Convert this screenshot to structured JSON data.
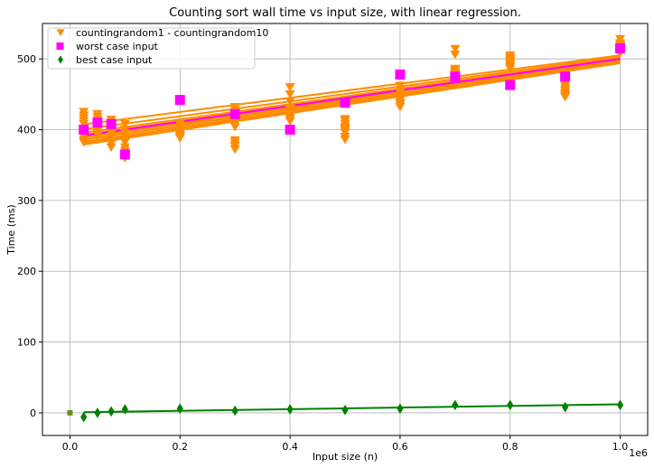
{
  "chart_data": {
    "type": "scatter",
    "title": "Counting sort wall time vs input size, with linear regression.",
    "xlabel": "Input size (n)",
    "ylabel": "Time (ms)",
    "x_offset_label": "1e6",
    "xlim": [
      -0.05,
      1.05
    ],
    "ylim": [
      -32,
      550
    ],
    "x_ticks": [
      0.0,
      0.2,
      0.4,
      0.6,
      0.8,
      1.0
    ],
    "x_tick_labels": [
      "0.0",
      "0.2",
      "0.4",
      "0.6",
      "0.8",
      "1.0"
    ],
    "y_ticks": [
      0,
      100,
      200,
      300,
      400,
      500
    ],
    "y_tick_labels": [
      "0",
      "100",
      "200",
      "300",
      "400",
      "500"
    ],
    "grid": true,
    "legend_position": "top-left",
    "legend": [
      {
        "label": "countingrandom1 - countingrandom10",
        "color": "#ff8c00",
        "marker": "triangle-down"
      },
      {
        "label": "worst case input",
        "color": "#ff00ff",
        "marker": "square"
      },
      {
        "label": "best case input",
        "color": "#008000",
        "marker": "diamond"
      }
    ],
    "random_series": {
      "color": "#ff8c00",
      "x": [
        0.025,
        0.05,
        0.075,
        0.1,
        0.2,
        0.3,
        0.4,
        0.5,
        0.6,
        0.7,
        0.8,
        0.9,
        1.0
      ],
      "y_runs": [
        [
          425,
          422,
          414,
          408,
          443,
          432,
          460,
          415,
          462,
          514,
          505,
          478,
          528
        ],
        [
          420,
          418,
          410,
          400,
          408,
          428,
          450,
          402,
          455,
          506,
          498,
          470,
          520
        ],
        [
          416,
          414,
          406,
          395,
          402,
          422,
          440,
          396,
          448,
          486,
          492,
          466,
          516
        ],
        [
          412,
          410,
          402,
          390,
          398,
          408,
          430,
          390,
          442,
          482,
          488,
          462,
          514
        ],
        [
          400,
          404,
          398,
          385,
          395,
          404,
          420,
          386,
          438,
          480,
          486,
          458,
          512
        ],
        [
          395,
          400,
          394,
          382,
          392,
          385,
          415,
          398,
          435,
          478,
          490,
          455,
          510
        ],
        [
          390,
          397,
          390,
          375,
          390,
          378,
          412,
          400,
          432,
          476,
          494,
          452,
          508
        ],
        [
          385,
          394,
          385,
          370,
          388,
          372,
          418,
          404,
          438,
          478,
          496,
          450,
          515
        ],
        [
          382,
          392,
          380,
          360,
          392,
          376,
          425,
          408,
          445,
          480,
          500,
          448,
          518
        ],
        [
          408,
          406,
          375,
          365,
          396,
          382,
          428,
          412,
          452,
          484,
          502,
          446,
          522
        ]
      ],
      "regression_lines": [
        {
          "intercept": 405,
          "slope": 100
        },
        {
          "intercept": 398,
          "slope": 105
        },
        {
          "intercept": 393,
          "slope": 108
        },
        {
          "intercept": 390,
          "slope": 110
        },
        {
          "intercept": 386,
          "slope": 112
        },
        {
          "intercept": 383,
          "slope": 114
        },
        {
          "intercept": 380,
          "slope": 115
        },
        {
          "intercept": 378,
          "slope": 117
        },
        {
          "intercept": 376,
          "slope": 118
        },
        {
          "intercept": 388,
          "slope": 110
        }
      ]
    },
    "worst_case": {
      "color": "#ff00ff",
      "x": [
        0.025,
        0.05,
        0.075,
        0.1,
        0.2,
        0.3,
        0.4,
        0.5,
        0.6,
        0.7,
        0.8,
        0.9,
        1.0
      ],
      "y": [
        400,
        410,
        408,
        365,
        442,
        422,
        400,
        438,
        478,
        475,
        463,
        475,
        515
      ],
      "regression": {
        "intercept": 389,
        "slope": 111
      }
    },
    "best_case": {
      "color": "#008000",
      "x": [
        0.025,
        0.05,
        0.075,
        0.1,
        0.2,
        0.3,
        0.4,
        0.5,
        0.6,
        0.7,
        0.8,
        0.9,
        1.0
      ],
      "y": [
        -6,
        0,
        2,
        5,
        6,
        3,
        5,
        4,
        6,
        11,
        11,
        8,
        11
      ],
      "regression": {
        "intercept": 0.5,
        "slope": 11.5
      }
    },
    "origin_points": [
      {
        "x": 0.0,
        "y": 0,
        "color": "#ff8c00"
      },
      {
        "x": 0.0,
        "y": 0,
        "color": "#008000"
      }
    ]
  }
}
